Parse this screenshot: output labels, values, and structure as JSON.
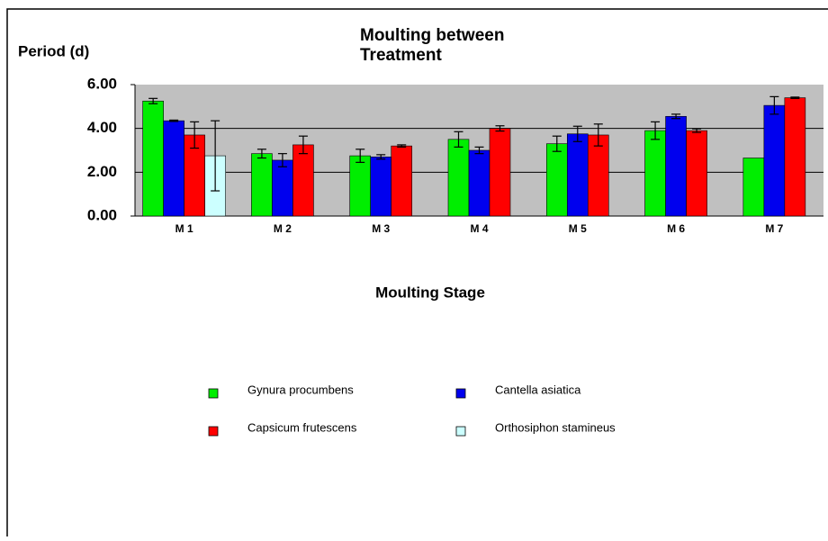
{
  "chart_data": {
    "type": "bar",
    "title": [
      "Moulting between",
      "Treatment"
    ],
    "y_label": "Period (d)",
    "x_label": "Moulting Stage",
    "categories": [
      "M 1",
      "M 2",
      "M 3",
      "M 4",
      "M 5",
      "M 6",
      "M 7"
    ],
    "series": [
      {
        "name": "Gynura procumbens",
        "color": "#00ee00",
        "values": [
          5.25,
          2.85,
          2.75,
          3.5,
          3.3,
          3.9,
          2.65
        ],
        "errors": [
          0.12,
          0.2,
          0.3,
          0.35,
          0.35,
          0.4,
          null
        ]
      },
      {
        "name": "Cantella asiatica",
        "color": "#0000ee",
        "values": [
          4.35,
          2.55,
          2.7,
          3.0,
          3.75,
          4.55,
          5.05
        ],
        "errors": [
          0.03,
          0.3,
          0.1,
          0.15,
          0.35,
          0.1,
          0.4
        ]
      },
      {
        "name": "Capsicum frutescens",
        "color": "#ff0000",
        "values": [
          3.7,
          3.25,
          3.2,
          4.0,
          3.7,
          3.9,
          5.4
        ],
        "errors": [
          0.6,
          0.4,
          0.05,
          0.12,
          0.5,
          0.08,
          0.03
        ]
      },
      {
        "name": "Orthosiphon stamineus",
        "color": "#ccffff",
        "values": [
          2.75,
          null,
          null,
          null,
          null,
          null,
          null
        ],
        "errors": [
          1.6,
          null,
          null,
          null,
          null,
          null,
          null
        ]
      }
    ],
    "ylim": [
      0,
      6
    ],
    "yticks": [
      {
        "value": 0,
        "label": "0.00"
      },
      {
        "value": 2,
        "label": "2.00"
      },
      {
        "value": 4,
        "label": "4.00"
      },
      {
        "value": 6,
        "label": "6.00"
      }
    ],
    "grid": true
  }
}
